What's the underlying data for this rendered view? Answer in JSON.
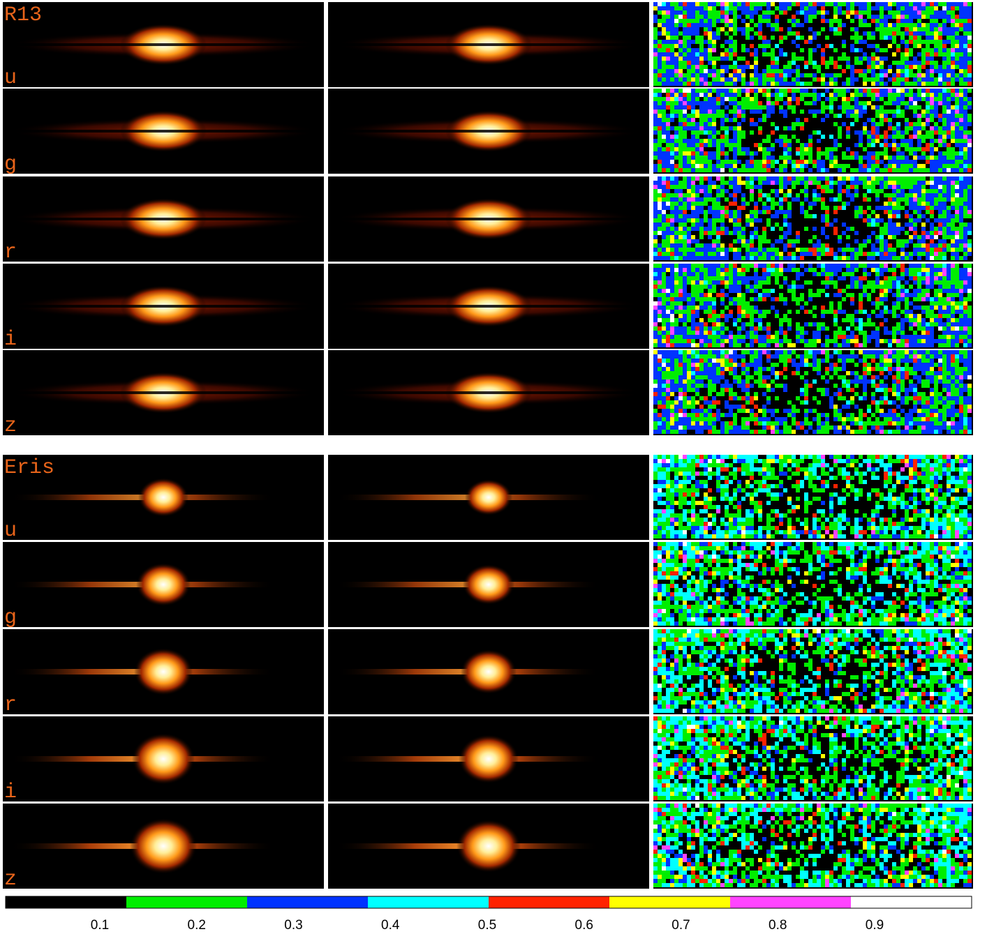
{
  "groups": [
    {
      "name": "R13",
      "bands": [
        "u",
        "g",
        "r",
        "i",
        "z"
      ]
    },
    {
      "name": "Eris",
      "bands": [
        "u",
        "g",
        "r",
        "i",
        "z"
      ]
    }
  ],
  "colorbar": {
    "colors": [
      "#000000",
      "#00ee00",
      "#0033ff",
      "#00ffff",
      "#ff2200",
      "#ffff00",
      "#ff44ff",
      "#ffffff"
    ],
    "tick_labels": [
      0.1,
      0.2,
      0.3,
      0.4,
      0.5,
      0.6,
      0.7,
      0.8,
      0.9
    ]
  }
}
